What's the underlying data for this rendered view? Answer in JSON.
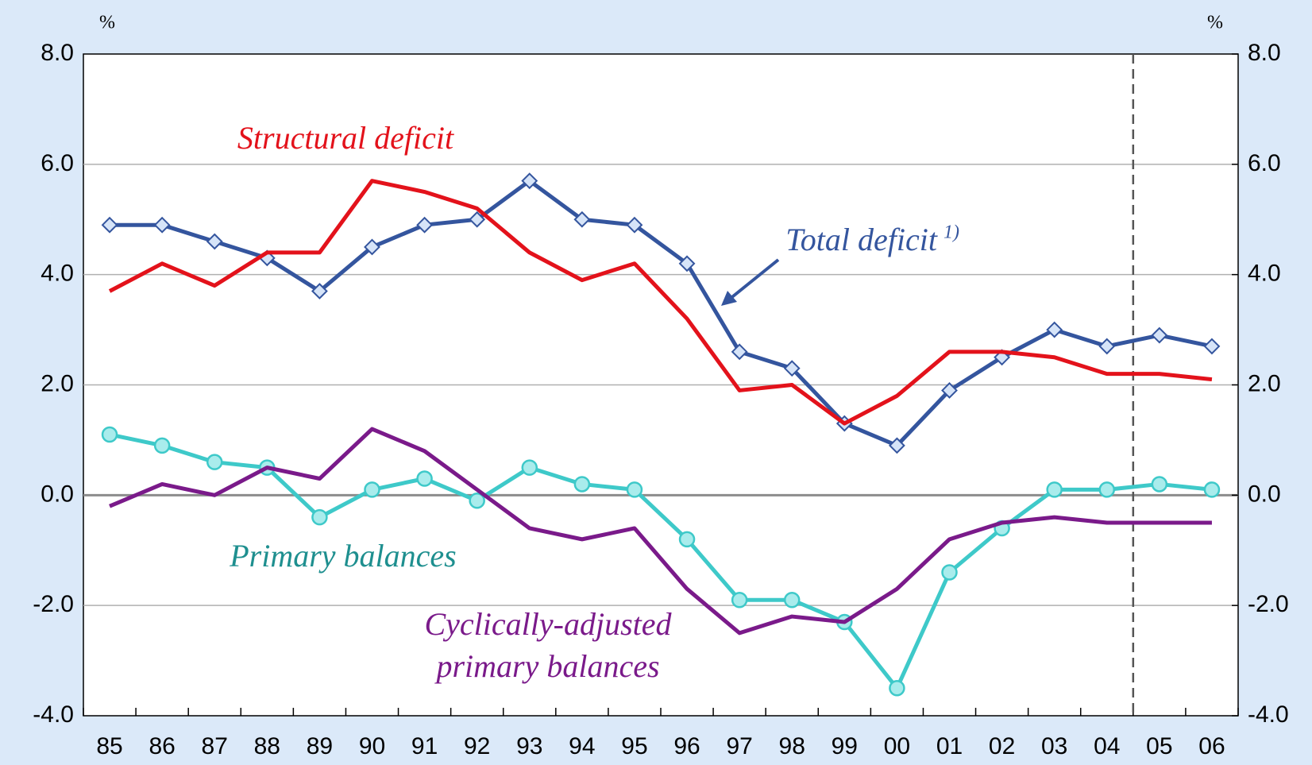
{
  "chart_data": {
    "type": "line",
    "categories": [
      "85",
      "86",
      "87",
      "88",
      "89",
      "90",
      "91",
      "92",
      "93",
      "94",
      "95",
      "96",
      "97",
      "98",
      "99",
      "00",
      "01",
      "02",
      "03",
      "04",
      "05",
      "06"
    ],
    "series": [
      {
        "name": "Total deficit",
        "footnote_marker": "1)",
        "color": "#34559e",
        "marker": "diamond",
        "values": [
          4.9,
          4.9,
          4.6,
          4.3,
          3.7,
          4.5,
          4.9,
          5.0,
          5.7,
          5.0,
          4.9,
          4.2,
          2.6,
          2.3,
          1.3,
          0.9,
          1.9,
          2.5,
          3.0,
          2.7,
          2.9,
          2.7
        ]
      },
      {
        "name": "Structural deficit",
        "color": "#e3121b",
        "marker": "none",
        "values": [
          3.7,
          4.2,
          3.8,
          4.4,
          4.4,
          5.7,
          5.5,
          5.2,
          4.4,
          3.9,
          4.2,
          3.2,
          1.9,
          2.0,
          1.3,
          1.8,
          2.6,
          2.6,
          2.5,
          2.2,
          2.2,
          2.1
        ]
      },
      {
        "name": "Primary balances",
        "color": "#3ec9c9",
        "marker": "circle",
        "values": [
          1.1,
          0.9,
          0.6,
          0.5,
          -0.4,
          0.1,
          0.3,
          -0.1,
          0.5,
          0.2,
          0.1,
          -0.8,
          -1.9,
          -1.9,
          -2.3,
          -3.5,
          -1.4,
          -0.6,
          0.1,
          0.1,
          0.2,
          0.1
        ]
      },
      {
        "name": "Cyclically-adjusted primary balances",
        "color": "#7a1a8a",
        "marker": "none",
        "values": [
          -0.2,
          0.2,
          0.0,
          0.5,
          0.3,
          1.2,
          0.8,
          0.1,
          -0.6,
          -0.8,
          -0.6,
          -1.7,
          -2.5,
          -2.2,
          -2.3,
          -1.7,
          -0.8,
          -0.5,
          -0.4,
          -0.5,
          -0.5,
          -0.5
        ]
      }
    ],
    "y_unit": "%",
    "y2_unit": "%",
    "ylim": [
      -4,
      8
    ],
    "yticks": [
      {
        "value": -4,
        "label": "-4.0"
      },
      {
        "value": -2,
        "label": "-2.0"
      },
      {
        "value": 0,
        "label": "0.0"
      },
      {
        "value": 2,
        "label": "2.0"
      },
      {
        "value": 4,
        "label": "4.0"
      },
      {
        "value": 6,
        "label": "6.0"
      },
      {
        "value": 8,
        "label": "8.0"
      }
    ],
    "y2lim": [
      -4,
      8
    ],
    "y2ticks": [
      {
        "value": -4,
        "label": "-4.0"
      },
      {
        "value": -2,
        "label": "-2.0"
      },
      {
        "value": 0,
        "label": "0.0"
      },
      {
        "value": 2,
        "label": "2.0"
      },
      {
        "value": 4,
        "label": "4.0"
      },
      {
        "value": 6,
        "label": "6.0"
      },
      {
        "value": 8,
        "label": "8.0"
      }
    ],
    "grid": true
  }
}
